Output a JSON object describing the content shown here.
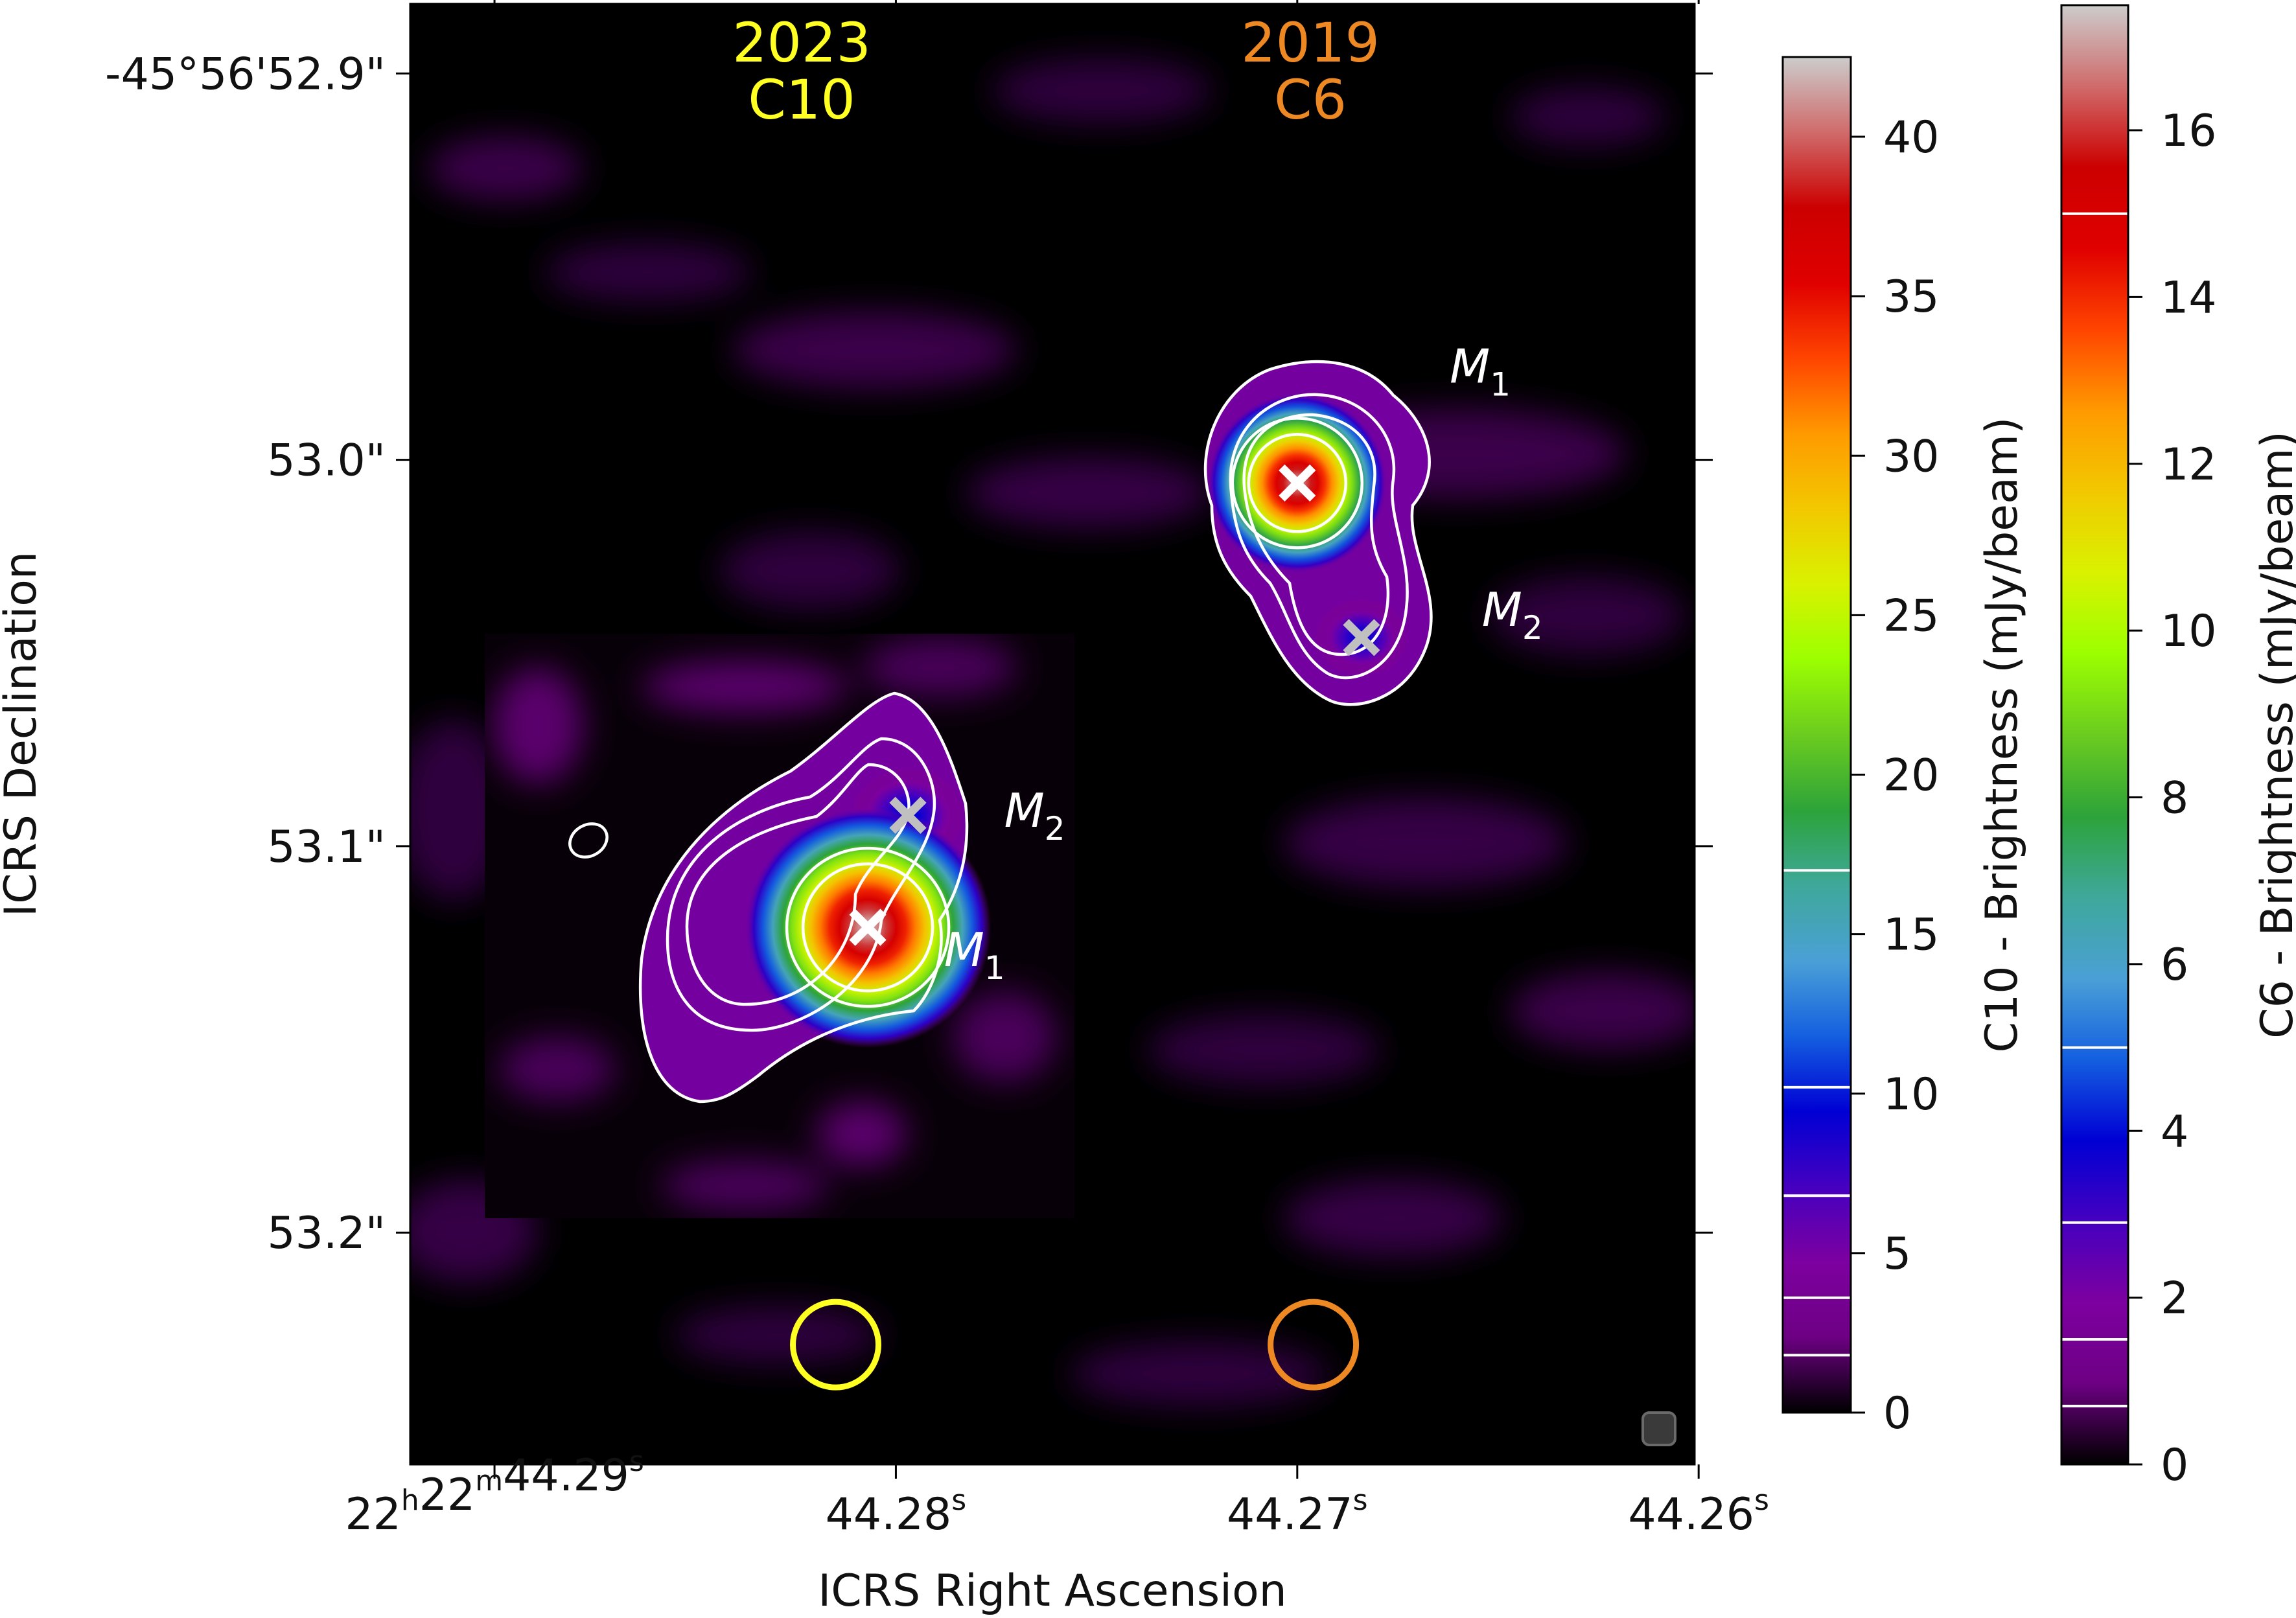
{
  "chart_data": {
    "type": "heatmap",
    "axes": {
      "xlabel": "ICRS Right Ascension",
      "ylabel": "ICRS Declination",
      "x_ticks": [
        {
          "value": 44.29,
          "label_main": "22",
          "label_parts": [
            {
              "t": "22",
              "sup": "h"
            },
            {
              "t": "22",
              "sup": "m"
            },
            {
              "t": "44.29",
              "sup": "s"
            }
          ]
        },
        {
          "value": 44.28,
          "label_parts": [
            {
              "t": "44.28",
              "sup": "s"
            }
          ]
        },
        {
          "value": 44.27,
          "label_parts": [
            {
              "t": "44.27",
              "sup": "s"
            }
          ]
        },
        {
          "value": 44.26,
          "label_parts": [
            {
              "t": "44.26",
              "sup": "s"
            }
          ]
        }
      ],
      "y_ticks": [
        {
          "value": 52.9,
          "label": "-45°56'52.9\""
        },
        {
          "value": 53.0,
          "label": "53.0\""
        },
        {
          "value": 53.1,
          "label": "53.1\""
        },
        {
          "value": 53.2,
          "label": "53.2\""
        }
      ],
      "x_range_s": [
        44.2921,
        44.2601
      ],
      "y_range_arcsec": [
        52.882,
        53.26
      ]
    },
    "epochs": [
      {
        "year": "2023",
        "config": "C10",
        "color": "#ffff22"
      },
      {
        "year": "2019",
        "config": "C6",
        "color": "#ee8822"
      }
    ],
    "sources": [
      {
        "epoch": "C10",
        "name": "M",
        "sub": "1",
        "ra_s": 44.2807,
        "dec": 53.121,
        "peak_mJy": 42,
        "marker_color": "#ffffff",
        "label_ra": 44.2788,
        "label_dec": 53.131
      },
      {
        "epoch": "C10",
        "name": "M",
        "sub": "2",
        "ra_s": 44.2797,
        "dec": 53.092,
        "peak_mJy": 10,
        "marker_color": "#c0c0c0",
        "label_ra": 44.2773,
        "label_dec": 53.095
      },
      {
        "epoch": "C6",
        "name": "M",
        "sub": "1",
        "ra_s": 44.27,
        "dec": 53.006,
        "peak_mJy": 17,
        "marker_color": "#ffffff",
        "label_ra": 44.2662,
        "label_dec": 52.98
      },
      {
        "epoch": "C6",
        "name": "M",
        "sub": "2",
        "ra_s": 44.2684,
        "dec": 53.046,
        "peak_mJy": 4,
        "marker_color": "#c0c0c0",
        "label_ra": 44.2654,
        "label_dec": 53.043
      }
    ],
    "beams": [
      {
        "epoch": "C10",
        "color": "#ffff22",
        "ra_s": 44.2815,
        "dec": 53.229
      },
      {
        "epoch": "C6",
        "color": "#ee8822",
        "ra_s": 44.2696,
        "dec": 53.229
      }
    ],
    "colorbars": [
      {
        "label": "C10 - Brightness (mJy/beam)",
        "range": [
          0,
          42.5
        ],
        "ticks": [
          0,
          5,
          10,
          15,
          20,
          25,
          30,
          35,
          40
        ],
        "contour_levels": [
          1.8,
          3.6,
          6.8,
          10.2,
          17.0
        ]
      },
      {
        "label": "C6 - Brightness (mJy/beam)",
        "range": [
          0,
          17.5
        ],
        "ticks": [
          0,
          2,
          4,
          6,
          8,
          10,
          12,
          14,
          16
        ],
        "contour_levels": [
          0.7,
          1.5,
          2.9,
          5.0,
          15.0
        ]
      }
    ],
    "colormap": [
      "#000000",
      "#6e0084",
      "#7d00a0",
      "#4500c0",
      "#0000d4",
      "#1460e0",
      "#4aa0d6",
      "#3fa89a",
      "#2da33a",
      "#6bcc1f",
      "#9cff00",
      "#d9f200",
      "#f2c800",
      "#ff9a00",
      "#ff4400",
      "#e00000",
      "#cc0000",
      "#d06a6a",
      "#cccccc"
    ]
  }
}
